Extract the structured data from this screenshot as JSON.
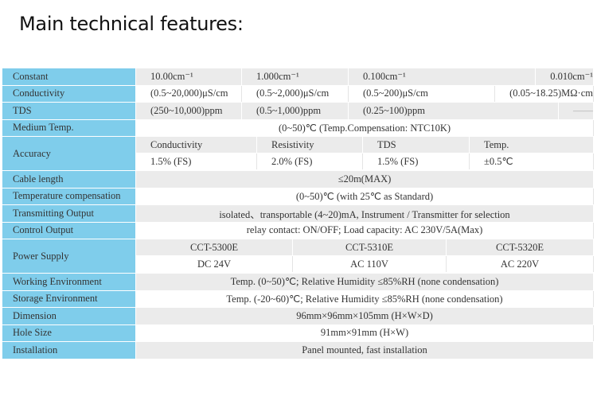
{
  "title": "Main technical features:",
  "colors": {
    "label_bg": "#7fcdeb",
    "row_grey": "#ebebeb",
    "row_white": "#ffffff"
  },
  "rows": {
    "constant": {
      "label": "Constant",
      "values": [
        "10.00cm⁻¹",
        "1.000cm⁻¹",
        "0.100cm⁻¹",
        "0.010cm⁻¹"
      ]
    },
    "conductivity": {
      "label": "Conductivity",
      "values": [
        "(0.5~20,000)μS/cm",
        "(0.5~2,000)μS/cm",
        "(0.5~200)μS/cm",
        "(0.05~18.25)MΩ·cm"
      ]
    },
    "tds": {
      "label": "TDS",
      "values": [
        "(250~10,000)ppm",
        "(0.5~1,000)ppm",
        "(0.25~100)ppm",
        "——"
      ]
    },
    "medium_temp": {
      "label": "Medium Temp.",
      "value": "(0~50)℃ (Temp.Compensation: NTC10K)"
    },
    "accuracy": {
      "label": "Accuracy",
      "headers": [
        "Conductivity",
        "Resistivity",
        "TDS",
        "Temp."
      ],
      "values": [
        "1.5% (FS)",
        "2.0% (FS)",
        "1.5% (FS)",
        "±0.5℃"
      ]
    },
    "cable": {
      "label": "Cable length",
      "value": "≤20m(MAX)"
    },
    "temp_comp": {
      "label": "Temperature compensation",
      "value": "(0~50)℃ (with 25℃ as Standard)"
    },
    "transmitting": {
      "label": "Transmitting Output",
      "value": "isolated、transportable (4~20)mA, Instrument / Transmitter for selection"
    },
    "control": {
      "label": "Control Output",
      "value": "relay contact: ON/OFF; Load capacity: AC 230V/5A(Max)"
    },
    "power": {
      "label": "Power Supply",
      "models": [
        "CCT-5300E",
        "CCT-5310E",
        "CCT-5320E"
      ],
      "values": [
        "DC 24V",
        "AC 110V",
        "AC 220V"
      ]
    },
    "working": {
      "label": "Working Environment",
      "value": "Temp. (0~50)℃; Relative Humidity ≤85%RH (none condensation)"
    },
    "storage": {
      "label": "Storage Environment",
      "value": "Temp. (-20~60)℃; Relative Humidity ≤85%RH (none condensation)"
    },
    "dimension": {
      "label": "Dimension",
      "value": "96mm×96mm×105mm (H×W×D)"
    },
    "hole": {
      "label": "Hole Size",
      "value": "91mm×91mm (H×W)"
    },
    "installation": {
      "label": "Installation",
      "value": "Panel mounted, fast installation"
    }
  }
}
